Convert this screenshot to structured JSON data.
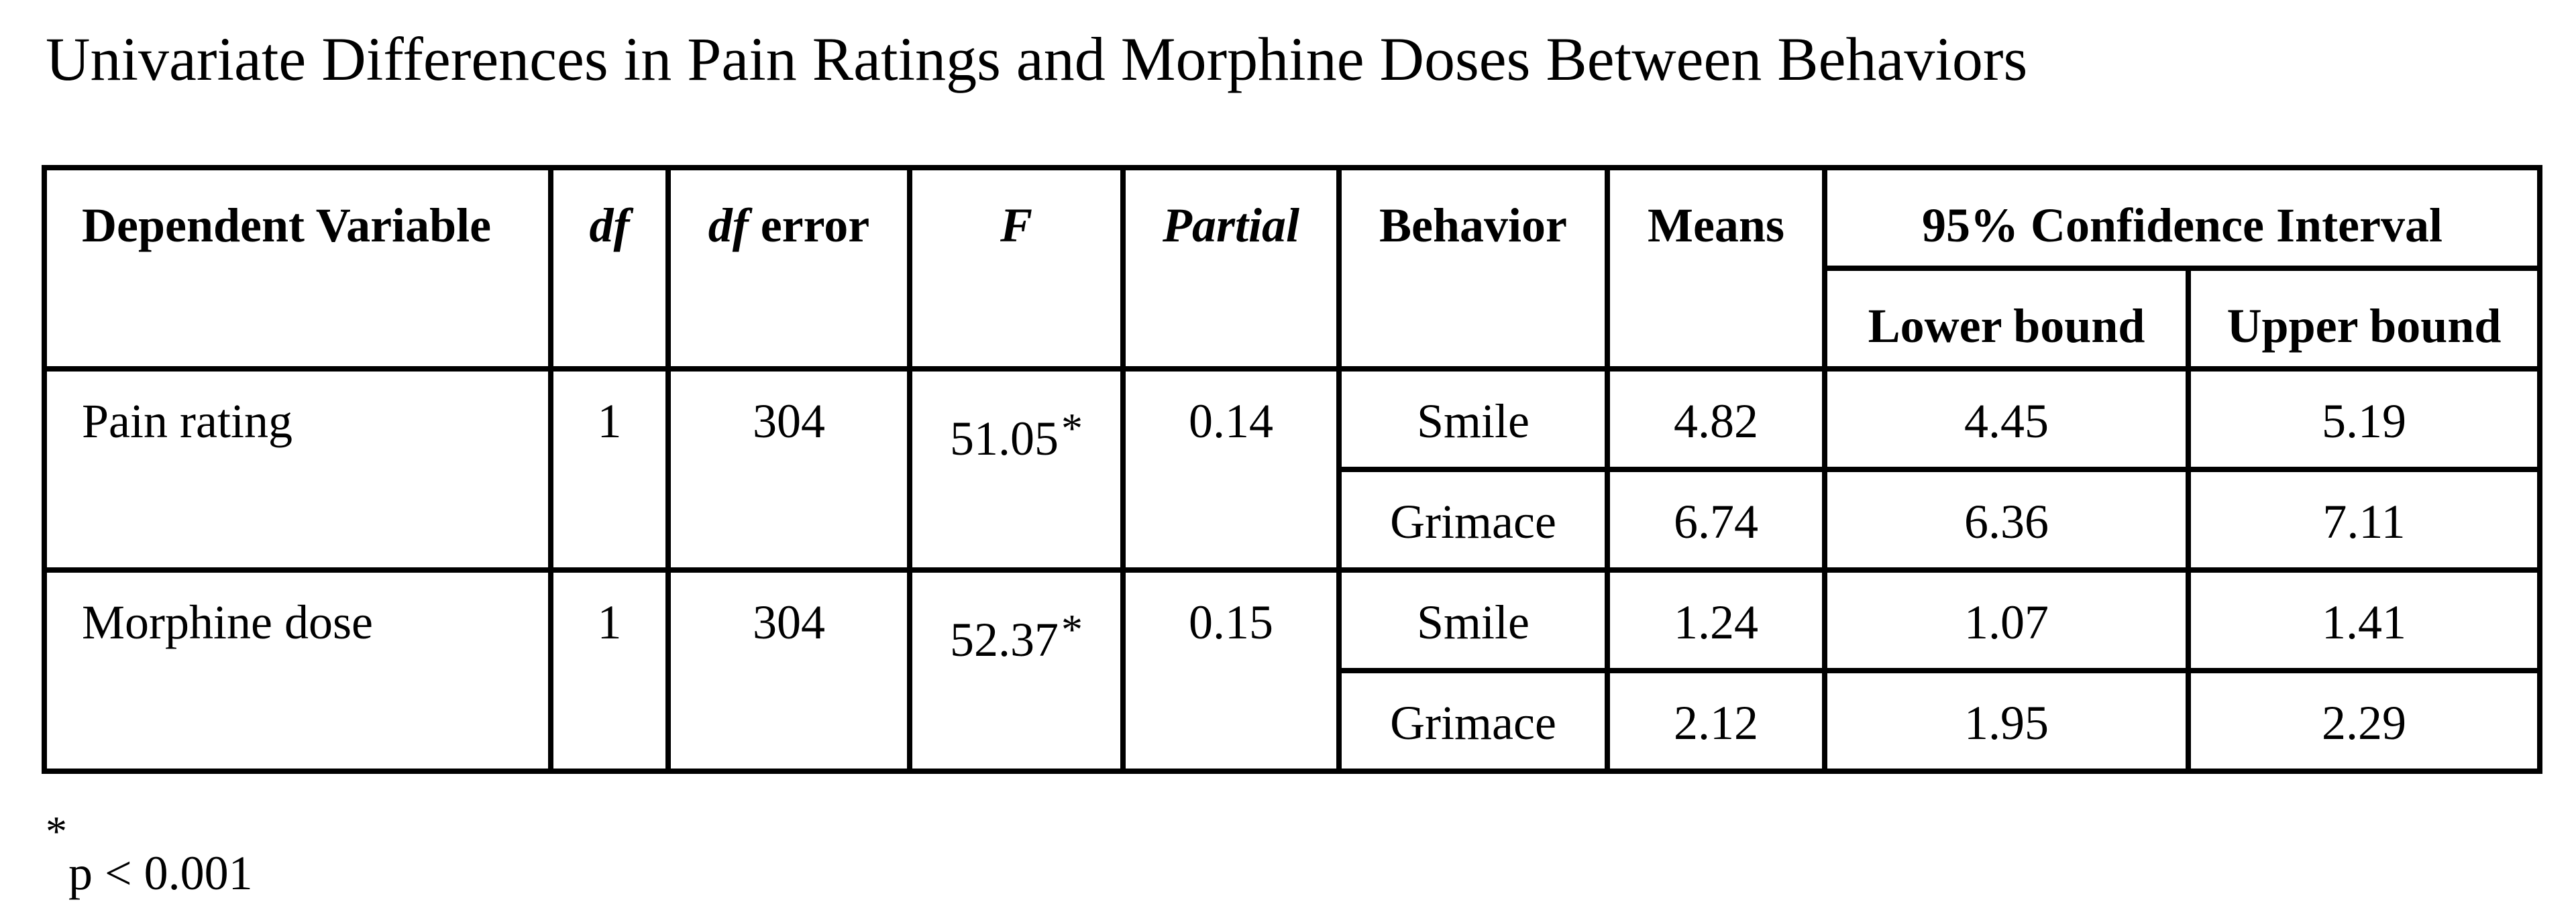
{
  "title": "Univariate Differences in Pain Ratings and Morphine Doses Between Behaviors",
  "table": {
    "headers": {
      "dependent_variable": "Dependent Variable",
      "df": "df",
      "df_error_italic": "df",
      "df_error_rest": " error",
      "f": "F",
      "partial": "Partial",
      "behavior": "Behavior",
      "means": "Means",
      "ci": "95% Confidence Interval",
      "lower_bound": "Lower bound",
      "upper_bound": "Upper bound"
    },
    "groups": [
      {
        "dependent_variable": "Pain rating",
        "df": "1",
        "df_error": "304",
        "f": "51.05",
        "f_mark": "*",
        "partial": "0.14",
        "rows": [
          {
            "behavior": "Smile",
            "mean": "4.82",
            "lower": "4.45",
            "upper": "5.19"
          },
          {
            "behavior": "Grimace",
            "mean": "6.74",
            "lower": "6.36",
            "upper": "7.11"
          }
        ]
      },
      {
        "dependent_variable": "Morphine dose",
        "df": "1",
        "df_error": "304",
        "f": "52.37",
        "f_mark": "*",
        "partial": "0.15",
        "rows": [
          {
            "behavior": "Smile",
            "mean": "1.24",
            "lower": "1.07",
            "upper": "1.41"
          },
          {
            "behavior": "Grimace",
            "mean": "2.12",
            "lower": "1.95",
            "upper": "2.29"
          }
        ]
      }
    ]
  },
  "footnote": {
    "mark": "*",
    "text": "p < 0.001"
  }
}
